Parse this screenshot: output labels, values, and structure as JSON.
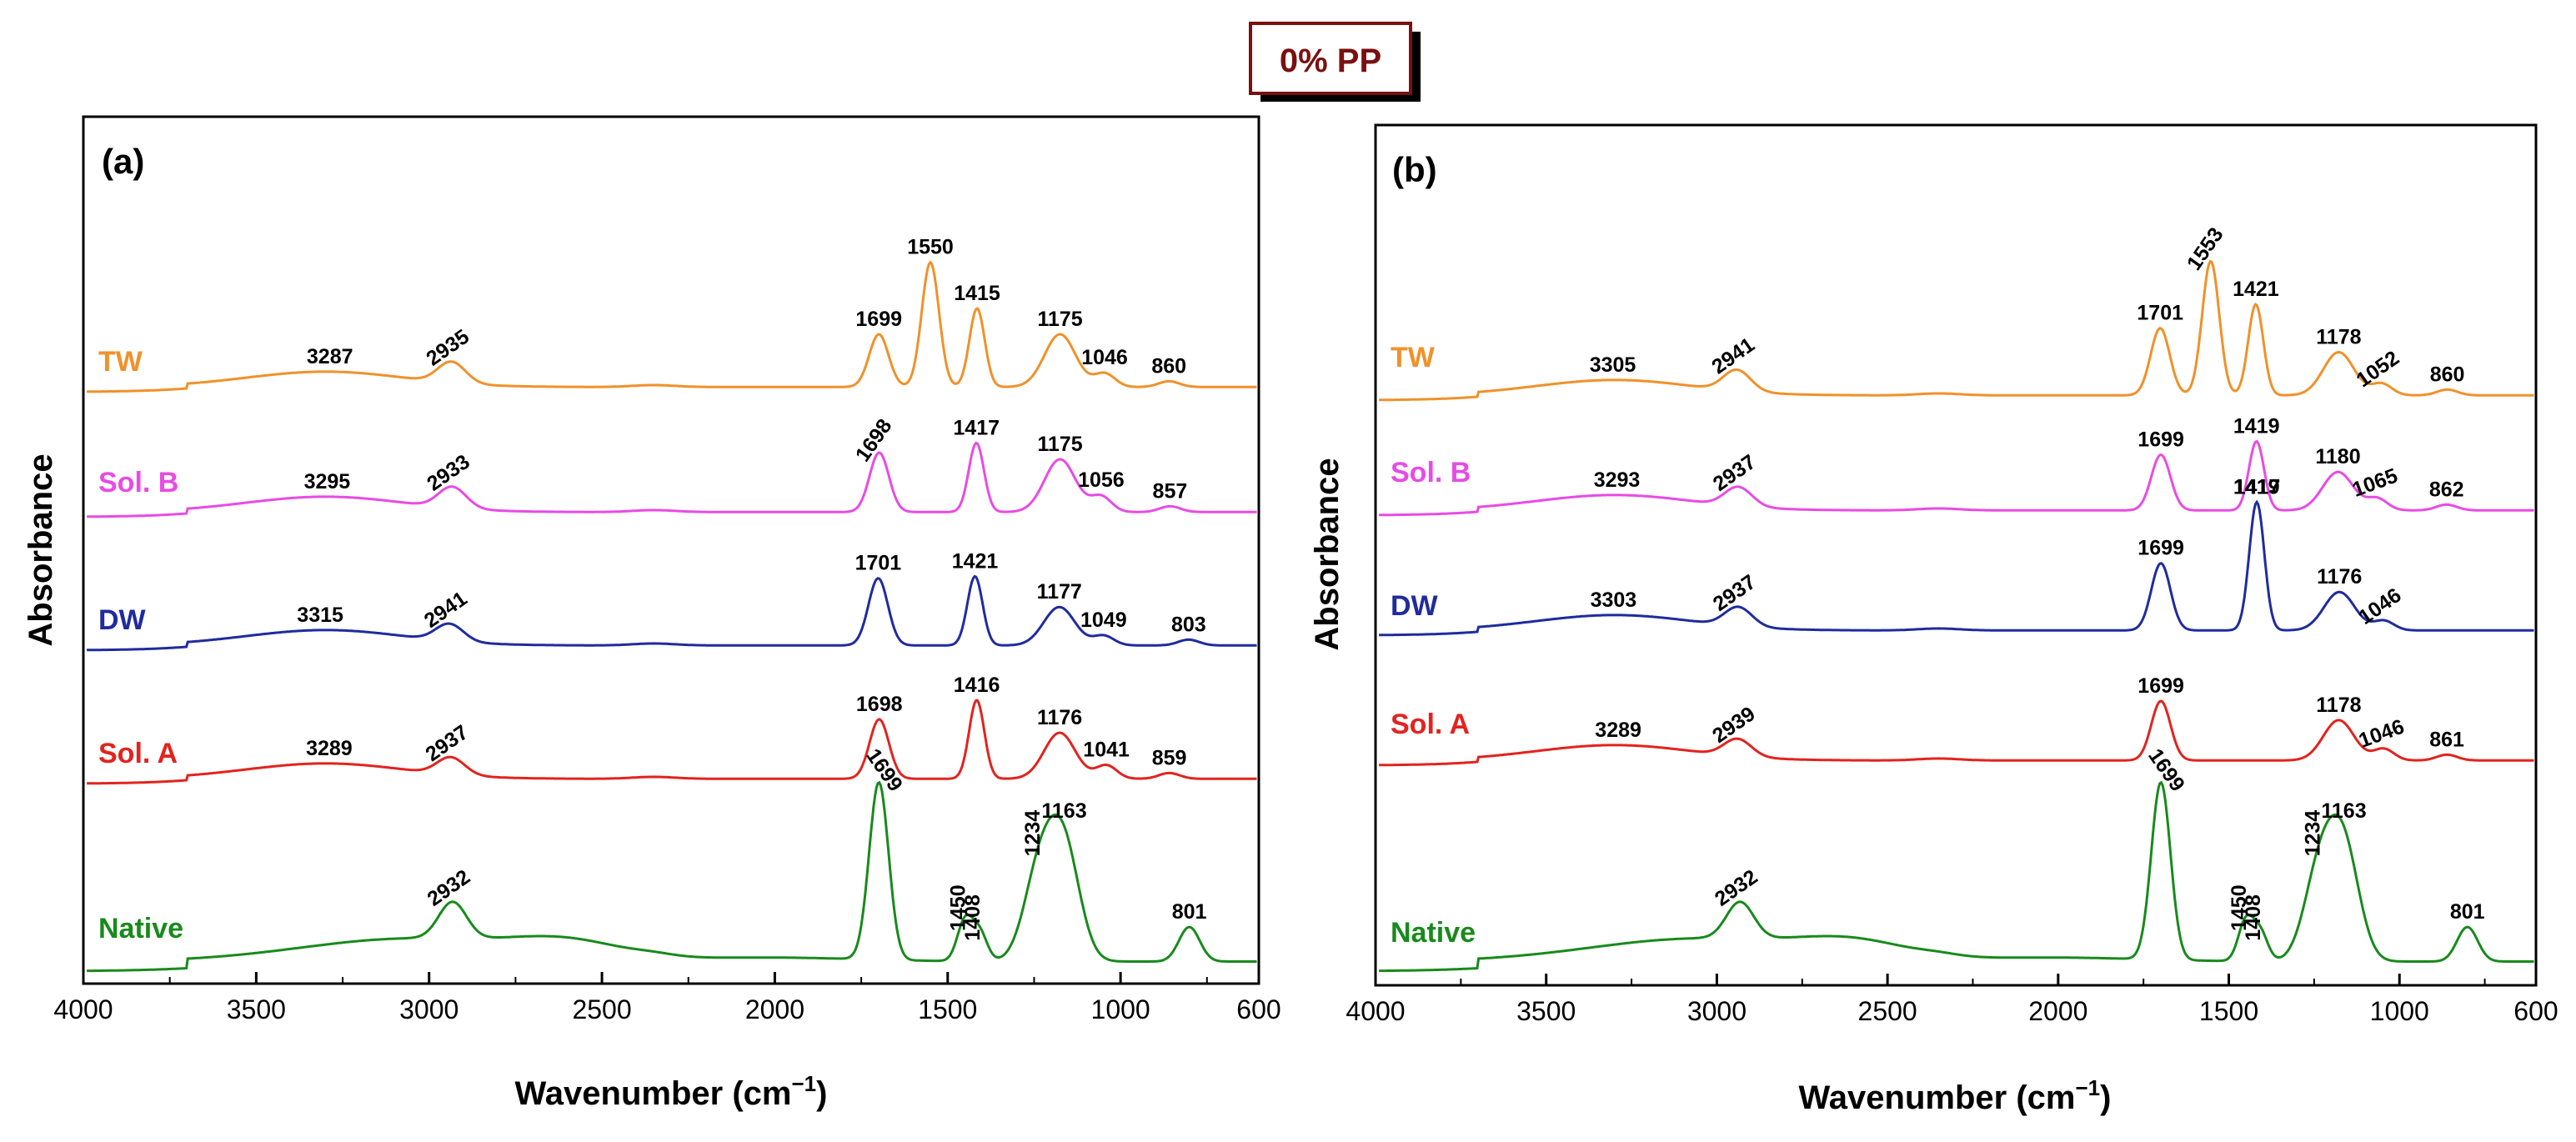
{
  "figure_title": "0% PP",
  "colors": {
    "TW": "#f0912a",
    "Sol. B": "#e84be4",
    "DW": "#1f2b9e",
    "Sol. A": "#e2231e",
    "Native": "#188a1c",
    "title_text": "#7a1010"
  },
  "chart_data": [
    {
      "type": "line",
      "panel": "(a)",
      "xlabel_main": "Wavenumber (cm",
      "xlabel_sup": "−1",
      "xlabel_close": ")",
      "ylabel": "Absorbance",
      "xlim": [
        4000,
        600
      ],
      "x_reversed": true,
      "xticks": [
        4000,
        3500,
        3000,
        2500,
        2000,
        1500,
        1000,
        600
      ],
      "series": [
        {
          "name": "TW",
          "baseline": 4.0,
          "peaks": [
            {
              "label": "3287",
              "x": 3287,
              "h": 0.22,
              "rot": 0
            },
            {
              "label": "2935",
              "x": 2935,
              "h": 0.22,
              "rot": -35
            },
            {
              "label": "1699",
              "x": 1699,
              "h": 0.55,
              "rot": 0
            },
            {
              "label": "1550",
              "x": 1550,
              "h": 1.3,
              "rot": 0
            },
            {
              "label": "1415",
              "x": 1415,
              "h": 0.82,
              "rot": 0
            },
            {
              "label": "1175",
              "x": 1175,
              "h": 0.55,
              "rot": 0
            },
            {
              "label": "1046",
              "x": 1046,
              "h": 0.14,
              "rot": 0
            },
            {
              "label": "860",
              "x": 860,
              "h": 0.06,
              "rot": 0
            }
          ]
        },
        {
          "name": "Sol. B",
          "baseline": 3.0,
          "peaks": [
            {
              "label": "3295",
              "x": 3295,
              "h": 0.22,
              "rot": 0
            },
            {
              "label": "2933",
              "x": 2933,
              "h": 0.22,
              "rot": -35
            },
            {
              "label": "1698",
              "x": 1698,
              "h": 0.62,
              "rot": -55
            },
            {
              "label": "1417",
              "x": 1417,
              "h": 0.72,
              "rot": 0
            },
            {
              "label": "1175",
              "x": 1175,
              "h": 0.55,
              "rot": 0
            },
            {
              "label": "1056",
              "x": 1056,
              "h": 0.16,
              "rot": 0
            },
            {
              "label": "857",
              "x": 857,
              "h": 0.06,
              "rot": 0
            }
          ]
        },
        {
          "name": "DW",
          "baseline": 2.0,
          "peaks": [
            {
              "label": "3315",
              "x": 3315,
              "h": 0.25,
              "rot": 0
            },
            {
              "label": "2941",
              "x": 2941,
              "h": 0.18,
              "rot": -35
            },
            {
              "label": "1701",
              "x": 1701,
              "h": 0.7,
              "rot": 0
            },
            {
              "label": "1421",
              "x": 1421,
              "h": 0.72,
              "rot": 0
            },
            {
              "label": "1177",
              "x": 1177,
              "h": 0.4,
              "rot": 0
            },
            {
              "label": "1049",
              "x": 1049,
              "h": 0.1,
              "rot": 0
            },
            {
              "label": "803",
              "x": 803,
              "h": 0.06,
              "rot": 0
            }
          ]
        },
        {
          "name": "Sol. A",
          "baseline": 1.0,
          "peaks": [
            {
              "label": "3289",
              "x": 3289,
              "h": 0.22,
              "rot": 0
            },
            {
              "label": "2937",
              "x": 2937,
              "h": 0.18,
              "rot": -35
            },
            {
              "label": "1698",
              "x": 1698,
              "h": 0.62,
              "rot": 0
            },
            {
              "label": "1416",
              "x": 1416,
              "h": 0.82,
              "rot": 0
            },
            {
              "label": "1176",
              "x": 1176,
              "h": 0.48,
              "rot": 0
            },
            {
              "label": "1041",
              "x": 1041,
              "h": 0.14,
              "rot": 0
            },
            {
              "label": "859",
              "x": 859,
              "h": 0.06,
              "rot": 0
            }
          ]
        },
        {
          "name": "Native",
          "baseline": 0.0,
          "peaks": [
            {
              "label": "2932",
              "x": 2932,
              "h": 0.38,
              "rot": -35
            },
            {
              "label": "1699",
              "x": 1699,
              "h": 1.85,
              "rot": 55
            },
            {
              "label": "1450",
              "x": 1450,
              "h": 0.42,
              "rot": -90
            },
            {
              "label": "1408",
              "x": 1408,
              "h": 0.3,
              "rot": -90
            },
            {
              "label": "1234",
              "x": 1234,
              "h": 0.92,
              "rot": -90
            },
            {
              "label": "1163",
              "x": 1163,
              "h": 1.15,
              "rot": 0
            },
            {
              "label": "801",
              "x": 801,
              "h": 0.36,
              "rot": 0
            }
          ]
        }
      ]
    },
    {
      "type": "line",
      "panel": "(b)",
      "xlabel_main": "Wavenumber (cm",
      "xlabel_sup": "−1",
      "xlabel_close": ")",
      "ylabel": "Absorbance",
      "xlim": [
        4000,
        600
      ],
      "x_reversed": true,
      "xticks": [
        4000,
        3500,
        3000,
        2500,
        2000,
        1500,
        1000,
        600
      ],
      "series": [
        {
          "name": "TW",
          "baseline": 4.0,
          "peaks": [
            {
              "label": "3305",
              "x": 3305,
              "h": 0.24,
              "rot": 0
            },
            {
              "label": "2941",
              "x": 2941,
              "h": 0.22,
              "rot": -35
            },
            {
              "label": "1701",
              "x": 1701,
              "h": 0.7,
              "rot": 0
            },
            {
              "label": "1553",
              "x": 1553,
              "h": 1.4,
              "rot": -55
            },
            {
              "label": "1421",
              "x": 1421,
              "h": 0.95,
              "rot": 0
            },
            {
              "label": "1178",
              "x": 1178,
              "h": 0.45,
              "rot": 0
            },
            {
              "label": "1052",
              "x": 1052,
              "h": 0.12,
              "rot": -35
            },
            {
              "label": "860",
              "x": 860,
              "h": 0.06,
              "rot": 0
            }
          ]
        },
        {
          "name": "Sol. B",
          "baseline": 3.0,
          "peaks": [
            {
              "label": "3293",
              "x": 3293,
              "h": 0.24,
              "rot": 0
            },
            {
              "label": "2937",
              "x": 2937,
              "h": 0.2,
              "rot": -35
            },
            {
              "label": "1699",
              "x": 1699,
              "h": 0.58,
              "rot": 0
            },
            {
              "label": "1419",
              "x": 1419,
              "h": 0.72,
              "rot": 0
            },
            {
              "label": "1180",
              "x": 1180,
              "h": 0.4,
              "rot": 0
            },
            {
              "label": "1065",
              "x": 1065,
              "h": 0.12,
              "rot": -20
            },
            {
              "label": "862",
              "x": 862,
              "h": 0.06,
              "rot": 0
            }
          ]
        },
        {
          "name": "DW",
          "baseline": 2.0,
          "peaks": [
            {
              "label": "3303",
              "x": 3303,
              "h": 0.25,
              "rot": 0
            },
            {
              "label": "2937",
              "x": 2937,
              "h": 0.2,
              "rot": -35
            },
            {
              "label": "1699",
              "x": 1699,
              "h": 0.7,
              "rot": 0
            },
            {
              "label": "1419",
              "x": 1419,
              "h": 0.72,
              "rot": 0
            },
            {
              "label": "1176",
              "x": 1176,
              "h": 0.4,
              "rot": 0
            },
            {
              "label": "1046",
              "x": 1046,
              "h": 0.1,
              "rot": -35
            },
            {
              "label": "1417",
              "x": 1417,
              "h": 0.62,
              "rot": 0
            }
          ]
        },
        {
          "name": "Sol. A",
          "baseline": 1.0,
          "peaks": [
            {
              "label": "3289",
              "x": 3289,
              "h": 0.22,
              "rot": 0
            },
            {
              "label": "2939",
              "x": 2939,
              "h": 0.18,
              "rot": -35
            },
            {
              "label": "1699",
              "x": 1699,
              "h": 0.62,
              "rot": 0
            },
            {
              "label": "1178",
              "x": 1178,
              "h": 0.42,
              "rot": 0
            },
            {
              "label": "1046",
              "x": 1046,
              "h": 0.12,
              "rot": -20
            },
            {
              "label": "861",
              "x": 861,
              "h": 0.06,
              "rot": 0
            }
          ]
        },
        {
          "name": "Native",
          "baseline": 0.0,
          "peaks": [
            {
              "label": "2932",
              "x": 2932,
              "h": 0.38,
              "rot": -35
            },
            {
              "label": "1699",
              "x": 1699,
              "h": 1.85,
              "rot": 55
            },
            {
              "label": "1450",
              "x": 1450,
              "h": 0.42,
              "rot": -90
            },
            {
              "label": "1408",
              "x": 1408,
              "h": 0.3,
              "rot": -90
            },
            {
              "label": "1234",
              "x": 1234,
              "h": 0.92,
              "rot": -90
            },
            {
              "label": "1163",
              "x": 1163,
              "h": 1.15,
              "rot": 0
            },
            {
              "label": "801",
              "x": 801,
              "h": 0.36,
              "rot": 0
            }
          ]
        }
      ]
    }
  ]
}
